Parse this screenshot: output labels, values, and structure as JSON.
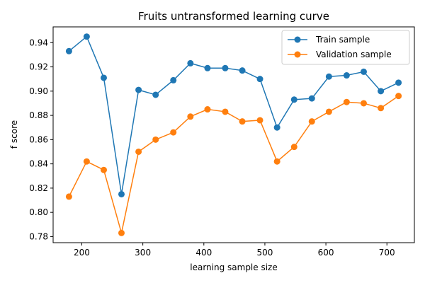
{
  "chart_data": {
    "type": "line",
    "title": "Fruits untransformed learning curve",
    "xlabel": "learning sample size",
    "ylabel": "f score",
    "x": [
      179,
      208,
      236,
      265,
      293,
      321,
      350,
      378,
      406,
      435,
      463,
      492,
      520,
      548,
      577,
      605,
      634,
      662,
      690,
      719
    ],
    "series": [
      {
        "name": "Train sample",
        "color": "#1f77b4",
        "values": [
          0.933,
          0.945,
          0.911,
          0.815,
          0.901,
          0.897,
          0.909,
          0.923,
          0.919,
          0.919,
          0.917,
          0.91,
          0.87,
          0.893,
          0.894,
          0.912,
          0.913,
          0.916,
          0.9,
          0.907
        ]
      },
      {
        "name": "Validation sample",
        "color": "#ff7f0e",
        "values": [
          0.813,
          0.842,
          0.835,
          0.783,
          0.85,
          0.86,
          0.866,
          0.879,
          0.885,
          0.883,
          0.875,
          0.876,
          0.842,
          0.854,
          0.875,
          0.883,
          0.891,
          0.89,
          0.886,
          0.896
        ]
      }
    ],
    "xlim": [
      153,
      745
    ],
    "ylim": [
      0.775,
      0.953
    ],
    "xticks": [
      300,
      400,
      500,
      600,
      700,
      200
    ],
    "xtick_labels": [
      "300",
      "400",
      "500",
      "600",
      "700",
      "200"
    ],
    "yticks": [
      0.78,
      0.8,
      0.82,
      0.84,
      0.86,
      0.88,
      0.9,
      0.92,
      0.94
    ],
    "ytick_labels": [
      "0.78",
      "0.80",
      "0.82",
      "0.84",
      "0.86",
      "0.88",
      "0.90",
      "0.92",
      "0.94"
    ],
    "grid": false,
    "legend_position": "top-right"
  }
}
